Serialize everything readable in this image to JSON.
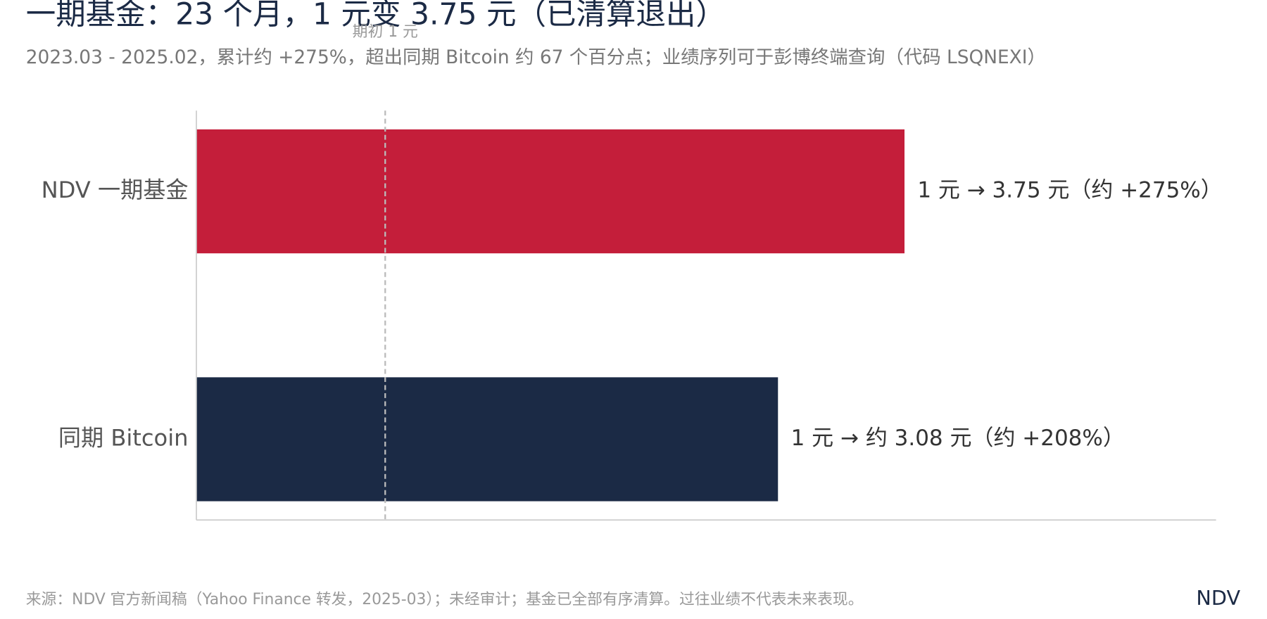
{
  "chart_data": {
    "type": "bar",
    "orientation": "horizontal",
    "title": "一期基金：23 个月，1 元变 3.75 元（已清算退出）",
    "subtitle": "2023.03 - 2025.02，累计约 +275%，超出同期 Bitcoin 约 67 个百分点；业绩序列可于彭博终端查询（代码 LSQNEXI）",
    "categories": [
      "NDV 一期基金",
      "同期 Bitcoin"
    ],
    "values": [
      3.75,
      3.08
    ],
    "value_labels": [
      "1 元 → 3.75 元（约 +275%）",
      "1 元 → 约 3.08 元（约 +208%）"
    ],
    "colors": [
      "#c41e3a",
      "#1b2a45"
    ],
    "xlim": [
      0,
      5.4
    ],
    "reference_line": {
      "value": 1,
      "label": "期初 1 元"
    },
    "grid": false,
    "source": "来源：NDV 官方新闻稿（Yahoo Finance 转发，2025-03）；未经审计；基金已全部有序清算。过往业绩不代表未来表现。",
    "brand": "NDV"
  }
}
